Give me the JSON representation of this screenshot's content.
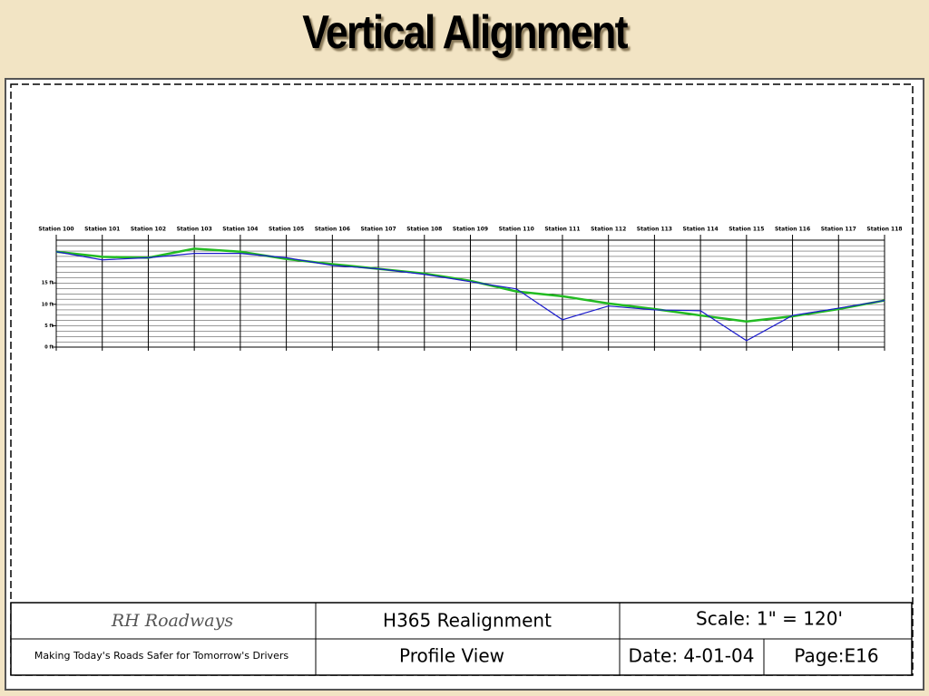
{
  "title": "Vertical Alignment",
  "chart_data": {
    "type": "line",
    "categories": [
      "Station 100",
      "Station 101",
      "Station 102",
      "Station 103",
      "Station 104",
      "Station 105",
      "Station 106",
      "Station 107",
      "Station 108",
      "Station 109",
      "Station 110",
      "Station 111",
      "Station 112",
      "Station 113",
      "Station 114",
      "Station 115",
      "Station 116",
      "Station 117",
      "Station 118"
    ],
    "series": [
      {
        "color": "#22bb22",
        "values": [
          22.3,
          21.1,
          20.9,
          23.0,
          22.3,
          20.6,
          19.4,
          18.3,
          17.2,
          15.5,
          13.0,
          11.9,
          10.2,
          8.9,
          7.4,
          6.0,
          7.2,
          8.9,
          10.9
        ]
      },
      {
        "color": "#1a1acc",
        "values": [
          22.3,
          20.4,
          20.9,
          21.9,
          21.9,
          20.9,
          19.1,
          18.3,
          17.0,
          15.3,
          13.6,
          6.4,
          9.6,
          8.7,
          8.5,
          1.5,
          7.4,
          9.1,
          10.9
        ]
      }
    ],
    "ylim": [
      0,
      25
    ],
    "yticks": [
      {
        "value": 0,
        "label": "0 ft"
      },
      {
        "value": 5,
        "label": "5 ft"
      },
      {
        "value": 10,
        "label": "10 ft"
      },
      {
        "value": 15,
        "label": "15 ft"
      }
    ]
  },
  "title_block": {
    "company": "RH Roadways",
    "project": "H365 Realignment",
    "scale": "Scale: 1\" = 120'",
    "motto": "Making Today's Roads Safer for Tomorrow's Drivers",
    "view": "Profile View",
    "date": "Date: 4-01-04",
    "page": "Page:E16"
  }
}
